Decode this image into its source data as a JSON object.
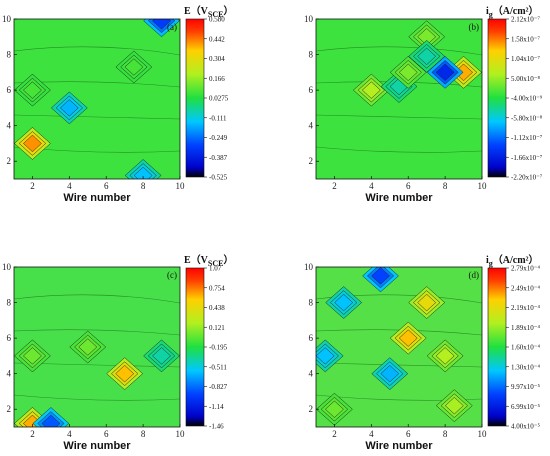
{
  "chart_data": [
    {
      "type": "heatmap",
      "panel_label": "(a)",
      "xlabel": "Wire number",
      "x_ticks": [
        "2",
        "4",
        "6",
        "8",
        "10"
      ],
      "y_ticks": [
        "2",
        "4",
        "6",
        "8",
        "10"
      ],
      "xlim": [
        1,
        10
      ],
      "ylim": [
        1,
        10
      ],
      "colorbar_title": "E（V",
      "colorbar_title_sub": "SCE",
      "colorbar_title_end": "）",
      "colorbar_ticks": [
        "0.580",
        "0.442",
        "0.304",
        "0.166",
        "0.0275",
        "-0.111",
        "-0.249",
        "-0.387",
        "-0.525"
      ],
      "background_color": "#3ee23e",
      "hotspots": [
        {
          "x": 2,
          "y": 3,
          "level": 0.95
        },
        {
          "x": 2,
          "y": 6,
          "level": 0.55
        },
        {
          "x": 7.5,
          "y": 7.3,
          "level": 0.55
        },
        {
          "x": 4,
          "y": 5,
          "level": 0.28
        },
        {
          "x": 9,
          "y": 9.9,
          "level": 0.1
        },
        {
          "x": 8,
          "y": 1.2,
          "level": 0.3
        }
      ]
    },
    {
      "type": "heatmap",
      "panel_label": "(b)",
      "xlabel": "Wire number",
      "x_ticks": [
        "2",
        "4",
        "6",
        "8",
        "10"
      ],
      "y_ticks": [
        "2",
        "4",
        "6",
        "8",
        "10"
      ],
      "xlim": [
        1,
        10
      ],
      "ylim": [
        1,
        10
      ],
      "colorbar_title": "i",
      "colorbar_title_sub": "g",
      "colorbar_title_end": "（A/cm²）",
      "colorbar_ticks": [
        "2.12x10⁻⁷",
        "1.58x10⁻⁷",
        "1.04x10⁻⁷",
        "5.00x10⁻⁸",
        "-4.00x10⁻⁹",
        "-5.80x10⁻⁸",
        "-1.12x10⁻⁷",
        "-1.66x10⁻⁷",
        "-2.20x10⁻⁷"
      ],
      "background_color": "#3ee23e",
      "hotspots": [
        {
          "x": 9,
          "y": 7,
          "level": 0.92
        },
        {
          "x": 8,
          "y": 7,
          "level": 0.05
        },
        {
          "x": 4,
          "y": 6,
          "level": 0.7
        },
        {
          "x": 7,
          "y": 9,
          "level": 0.62
        },
        {
          "x": 7,
          "y": 7.9,
          "level": 0.4
        },
        {
          "x": 5.5,
          "y": 6.2,
          "level": 0.4
        },
        {
          "x": 6,
          "y": 7,
          "level": 0.62
        }
      ]
    },
    {
      "type": "heatmap",
      "panel_label": "(c)",
      "xlabel": "Wire number",
      "x_ticks": [
        "2",
        "4",
        "6",
        "8",
        "10"
      ],
      "y_ticks": [
        "2",
        "4",
        "6",
        "8",
        "10"
      ],
      "xlim": [
        1,
        10
      ],
      "ylim": [
        1,
        10
      ],
      "colorbar_title": "E（V",
      "colorbar_title_sub": "SCE",
      "colorbar_title_end": "）",
      "colorbar_ticks": [
        "1.07",
        "0.754",
        "0.438",
        "0.121",
        "-0.195",
        "-0.511",
        "-0.827",
        "-1.14",
        "-1.46"
      ],
      "background_color": "#48e04a",
      "hotspots": [
        {
          "x": 7,
          "y": 4,
          "level": 0.9
        },
        {
          "x": 2,
          "y": 1.2,
          "level": 0.92
        },
        {
          "x": 3,
          "y": 1.2,
          "level": 0.15
        },
        {
          "x": 9,
          "y": 5,
          "level": 0.4
        },
        {
          "x": 2,
          "y": 5,
          "level": 0.6
        },
        {
          "x": 5,
          "y": 5.5,
          "level": 0.6
        }
      ]
    },
    {
      "type": "heatmap",
      "panel_label": "(d)",
      "xlabel": "Wire number",
      "x_ticks": [
        "2",
        "4",
        "6",
        "8",
        "10"
      ],
      "y_ticks": [
        "2",
        "4",
        "6",
        "8",
        "10"
      ],
      "xlim": [
        1,
        10
      ],
      "ylim": [
        1,
        10
      ],
      "colorbar_title": "i",
      "colorbar_title_sub": "g",
      "colorbar_title_end": "（A/cm²）",
      "colorbar_ticks": [
        "2.79x10⁻⁴",
        "2.49x10⁻⁴",
        "2.19x10⁻⁴",
        "1.89x10⁻⁴",
        "1.60x10⁻⁴",
        "1.30x10⁻⁴",
        "9.97x10⁻⁵",
        "6.99x10⁻⁵",
        "4.00x10⁻⁵"
      ],
      "background_color": "#54e046",
      "hotspots": [
        {
          "x": 6,
          "y": 6,
          "level": 0.9
        },
        {
          "x": 7,
          "y": 8,
          "level": 0.82
        },
        {
          "x": 8,
          "y": 5,
          "level": 0.7
        },
        {
          "x": 8.5,
          "y": 2.2,
          "level": 0.68
        },
        {
          "x": 4.5,
          "y": 9.5,
          "level": 0.12
        },
        {
          "x": 2.5,
          "y": 8,
          "level": 0.3
        },
        {
          "x": 1.5,
          "y": 5,
          "level": 0.3
        },
        {
          "x": 5,
          "y": 4,
          "level": 0.28
        },
        {
          "x": 2,
          "y": 2,
          "level": 0.6
        }
      ]
    }
  ]
}
